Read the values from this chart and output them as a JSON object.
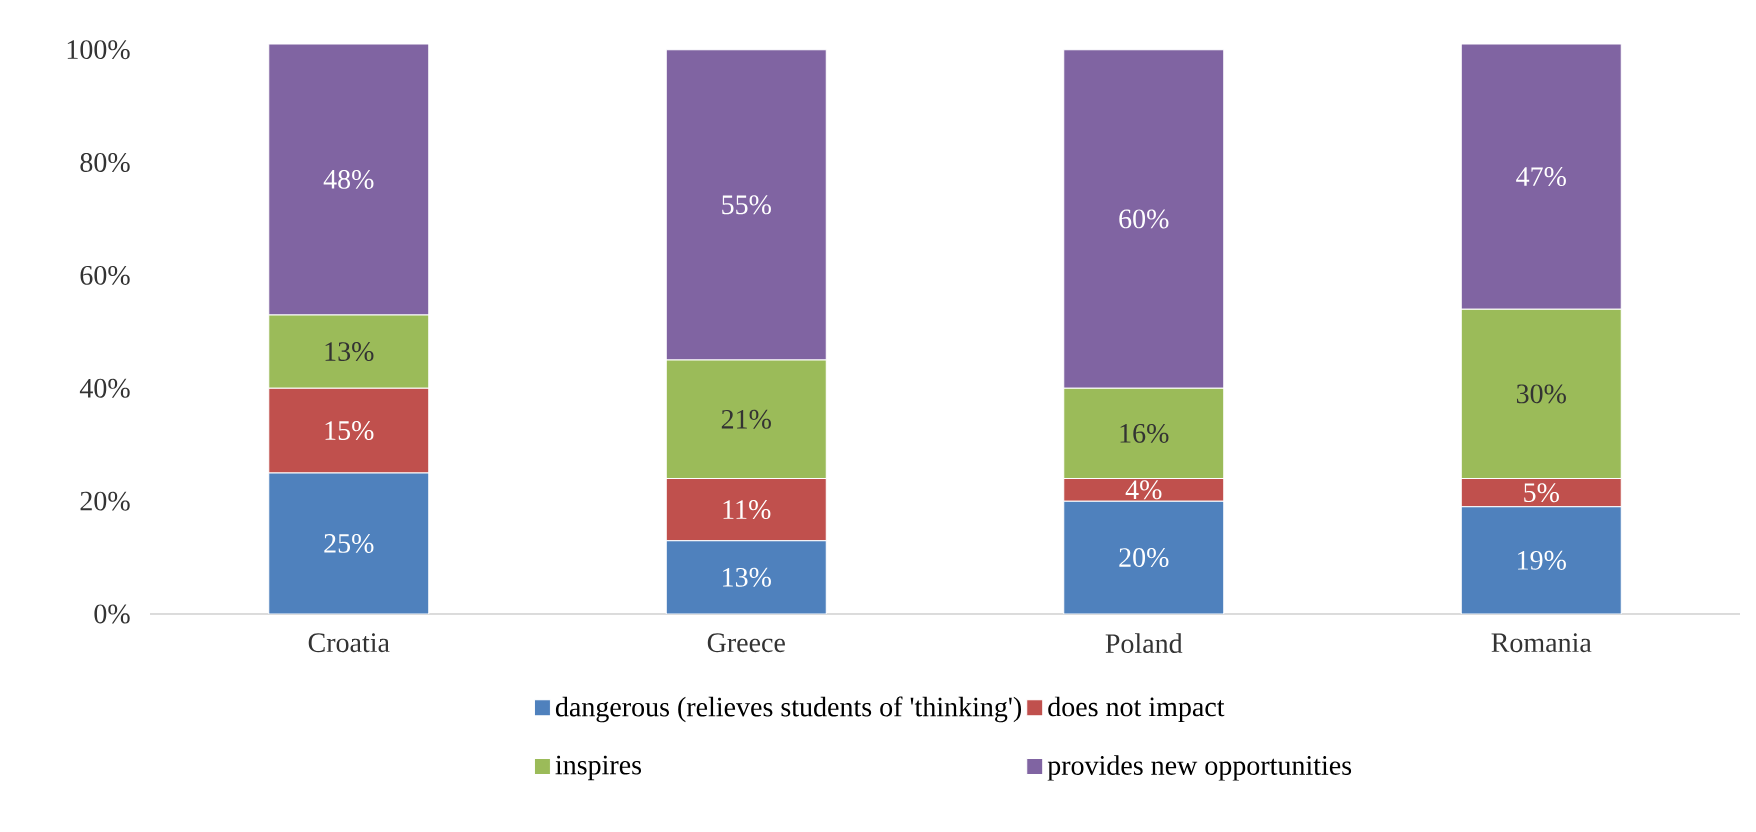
{
  "chart_data": {
    "type": "bar",
    "stacked": true,
    "categories": [
      "Croatia",
      "Greece",
      "Poland",
      "Romania"
    ],
    "series": [
      {
        "name": "dangerous (relieves students of 'thinking')",
        "color": "#4f81bd",
        "values": [
          25,
          13,
          20,
          19
        ],
        "value_labels": [
          "25%",
          "13%",
          "20%",
          "19%"
        ]
      },
      {
        "name": "does not impact",
        "color": "#c0504d",
        "values": [
          15,
          11,
          4,
          5
        ],
        "value_labels": [
          "15%",
          "11%",
          "4%",
          "5%"
        ]
      },
      {
        "name": "inspires",
        "color": "#9bbb59",
        "values": [
          13,
          21,
          16,
          30
        ],
        "value_labels": [
          "13%",
          "21%",
          "16%",
          "30%"
        ]
      },
      {
        "name": "provides new opportunities",
        "color": "#8064a2",
        "values": [
          48,
          55,
          60,
          47
        ],
        "value_labels": [
          "48%",
          "55%",
          "60%",
          "47%"
        ]
      }
    ],
    "ylim": [
      0,
      101
    ],
    "yticks": [
      {
        "value": 0,
        "label": "0%"
      },
      {
        "value": 20,
        "label": "20%"
      },
      {
        "value": 40,
        "label": "40%"
      },
      {
        "value": 60,
        "label": "60%"
      },
      {
        "value": 80,
        "label": "80%"
      },
      {
        "value": 100,
        "label": "100%"
      }
    ],
    "legend": "bottom"
  }
}
